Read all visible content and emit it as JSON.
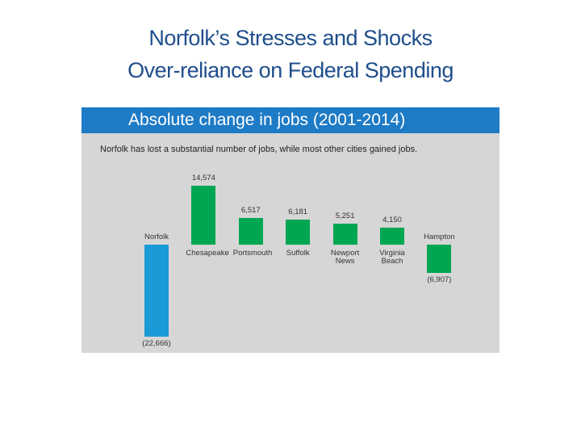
{
  "slide_title": "Norfolk’s Stresses and Shocks",
  "slide_subtitle": "Over-reliance on Federal Spending",
  "chart_data": {
    "type": "bar",
    "title": "Absolute change in jobs (2001-2014)",
    "subtitle": "Norfolk has lost a substantial number of jobs, while most other cities gained jobs.",
    "categories": [
      "Norfolk",
      "Chesapeake",
      "Portsmouth",
      "Suffolk",
      "Newport News",
      "Virginia Beach",
      "Hampton"
    ],
    "values": [
      -22666,
      14574,
      6517,
      6181,
      5251,
      4150,
      -6907
    ],
    "value_labels": [
      "(22,666)",
      "14,574",
      "6,517",
      "6,181",
      "5,251",
      "4,150",
      "(6,907)"
    ],
    "colors": [
      "#1a9ad6",
      "#00a651",
      "#00a651",
      "#00a651",
      "#00a651",
      "#00a651",
      "#00a651"
    ]
  }
}
